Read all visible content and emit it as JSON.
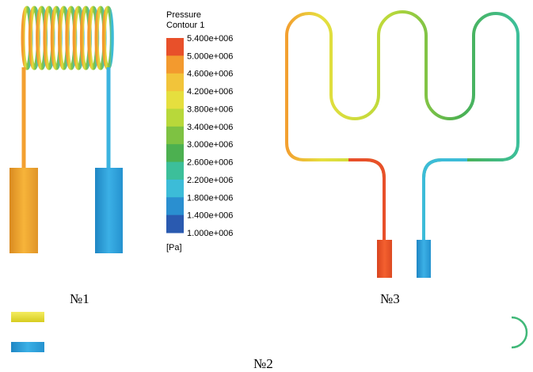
{
  "legend": {
    "title": "Pressure",
    "subtitle": "Contour 1",
    "levels": [
      "5.400e+006",
      "5.000e+006",
      "4.600e+006",
      "4.200e+006",
      "3.800e+006",
      "3.400e+006",
      "3.000e+006",
      "2.600e+006",
      "2.200e+006",
      "1.800e+006",
      "1.400e+006",
      "1.000e+006"
    ],
    "colors": [
      "#e8502a",
      "#f39a2e",
      "#f2c43a",
      "#e6df3e",
      "#b8d83a",
      "#7ec242",
      "#4cb050",
      "#3cbf9a",
      "#3cbcd8",
      "#2a8fd0",
      "#2a5ab0"
    ],
    "unit": "[Pa]"
  },
  "labels": {
    "model_1": "№1",
    "model_2": "№2",
    "model_3": "№3"
  }
}
